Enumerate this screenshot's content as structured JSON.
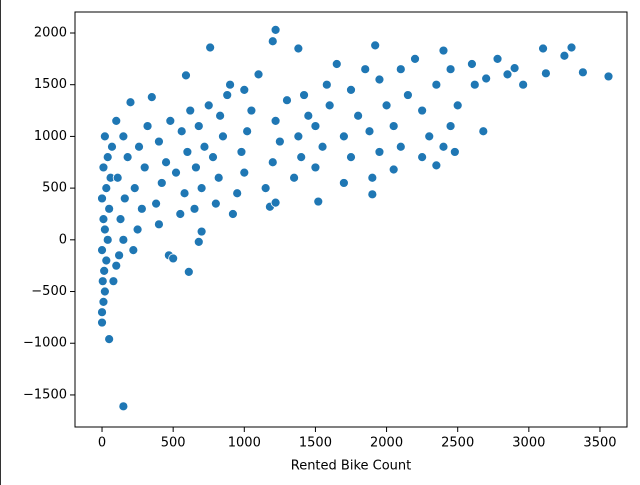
{
  "chart_data": {
    "type": "scatter",
    "xlabel": "Rented Bike Count",
    "color": "#1f77b4",
    "x": [
      0,
      0,
      10,
      20,
      5,
      15,
      30,
      0,
      40,
      20,
      10,
      50,
      0,
      30,
      60,
      10,
      40,
      70,
      20,
      100,
      50,
      150,
      80,
      100,
      120,
      150,
      130,
      160,
      110,
      180,
      150,
      200,
      220,
      250,
      280,
      230,
      300,
      260,
      320,
      350,
      400,
      380,
      420,
      450,
      400,
      480,
      470,
      500,
      550,
      580,
      520,
      600,
      560,
      620,
      590,
      610,
      650,
      680,
      700,
      660,
      720,
      680,
      750,
      760,
      700,
      800,
      820,
      780,
      850,
      830,
      880,
      900,
      920,
      950,
      1000,
      980,
      1020,
      1050,
      1000,
      1100,
      1150,
      1180,
      1220,
      1200,
      1250,
      1220,
      1300,
      1200,
      1220,
      1350,
      1400,
      1380,
      1450,
      1420,
      1380,
      1500,
      1520,
      1550,
      1500,
      1600,
      1580,
      1650,
      1700,
      1750,
      1700,
      1800,
      1750,
      1850,
      1900,
      1900,
      1950,
      1880,
      2000,
      1950,
      1920,
      2050,
      2100,
      2050,
      2150,
      2100,
      2200,
      2250,
      2300,
      2250,
      2350,
      2400,
      2350,
      2400,
      2450,
      2480,
      2500,
      2450,
      2600,
      2620,
      2680,
      2700,
      2780,
      2850,
      2900,
      2960,
      3100,
      3120,
      3250,
      3300,
      3380,
      3560
    ],
    "y": [
      -800,
      -700,
      -600,
      -500,
      -400,
      -300,
      -200,
      -100,
      0,
      100,
      200,
      300,
      400,
      500,
      600,
      700,
      800,
      900,
      1000,
      1150,
      -960,
      -1610,
      -400,
      -250,
      -150,
      0,
      200,
      400,
      600,
      800,
      1000,
      1330,
      -100,
      100,
      300,
      500,
      700,
      900,
      1100,
      1380,
      150,
      350,
      550,
      750,
      950,
      1150,
      -150,
      -180,
      250,
      450,
      650,
      850,
      1050,
      1250,
      1590,
      -310,
      300,
      -20,
      500,
      700,
      900,
      1100,
      1300,
      1860,
      80,
      350,
      600,
      800,
      1000,
      1200,
      1400,
      1500,
      250,
      450,
      650,
      850,
      1050,
      1250,
      1450,
      1600,
      500,
      320,
      360,
      750,
      950,
      1150,
      1350,
      1920,
      2030,
      600,
      800,
      1000,
      1200,
      1400,
      1850,
      700,
      370,
      900,
      1100,
      1300,
      1500,
      1700,
      550,
      800,
      1000,
      1200,
      1450,
      1650,
      440,
      600,
      850,
      1050,
      1300,
      1550,
      1880,
      680,
      900,
      1100,
      1400,
      1650,
      1750,
      800,
      1000,
      1250,
      1500,
      1830,
      720,
      900,
      1100,
      850,
      1300,
      1650,
      1700,
      1500,
      1050,
      1560,
      1750,
      1600,
      1660,
      1500,
      1850,
      1610,
      1780,
      1860,
      1620,
      1580
    ],
    "xlim": [
      -190,
      3690
    ],
    "xticks": [
      0,
      500,
      1000,
      1500,
      2000,
      2500,
      3000,
      3500
    ],
    "ylim": [
      -1810,
      2203
    ],
    "yticks": [
      {
        "value": -1500,
        "label": "−1500"
      },
      {
        "value": -1000,
        "label": "−1000"
      },
      {
        "value": -500,
        "label": "−500"
      },
      0,
      500,
      1000,
      1500,
      2000
    ]
  }
}
